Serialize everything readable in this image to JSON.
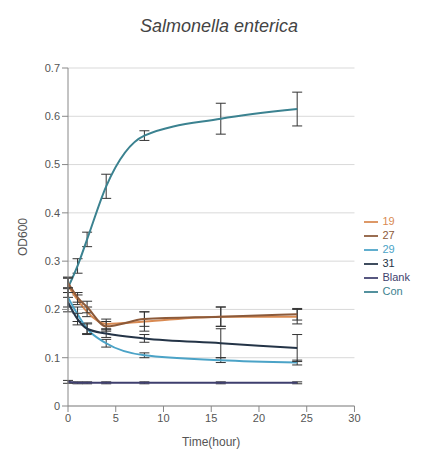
{
  "chart_data": {
    "type": "line",
    "title": "Salmonella enterica",
    "x_label": "Time(hour)",
    "y_label": "OD600",
    "x": [
      0,
      1,
      2,
      4,
      8,
      16,
      24
    ],
    "xlim": [
      0,
      30
    ],
    "xticks": [
      0,
      5,
      10,
      15,
      20,
      25,
      30
    ],
    "ylim": [
      0,
      0.7
    ],
    "yticks": [
      0,
      0.1,
      0.2,
      0.3,
      0.4,
      0.5,
      0.6,
      0.7
    ],
    "grid": true,
    "legend": "right",
    "line_style": "smooth",
    "series": [
      {
        "name": "Blank",
        "color": "#3f3f6e",
        "values": [
          0.05,
          0.048,
          0.048,
          0.048,
          0.048,
          0.048,
          0.048
        ],
        "errors": [
          0.003,
          0.002,
          0.002,
          0.002,
          0.002,
          0.002,
          0.002
        ]
      },
      {
        "name": "Con",
        "color": "#3b8290",
        "values": [
          0.245,
          0.29,
          0.345,
          0.455,
          0.56,
          0.595,
          0.615
        ],
        "errors": [
          0.02,
          0.015,
          0.015,
          0.025,
          0.01,
          0.032,
          0.035
        ]
      },
      {
        "name": "19",
        "color": "#d98a52",
        "values": [
          0.25,
          0.22,
          0.195,
          0.17,
          0.175,
          0.185,
          0.185
        ],
        "errors": [
          0.015,
          0.01,
          0.01,
          0.01,
          0.02,
          0.02,
          0.015
        ]
      },
      {
        "name": "27",
        "color": "#8c5a3a",
        "values": [
          0.255,
          0.225,
          0.205,
          0.165,
          0.18,
          0.185,
          0.19
        ],
        "errors": [
          0.012,
          0.01,
          0.012,
          0.01,
          0.015,
          0.02,
          0.012
        ]
      },
      {
        "name": "29",
        "color": "#4ba3c7",
        "values": [
          0.225,
          0.19,
          0.16,
          0.13,
          0.105,
          0.095,
          0.09
        ],
        "errors": [
          0.02,
          0.015,
          0.012,
          0.008,
          0.005,
          0.005,
          0.005
        ]
      },
      {
        "name": "31",
        "color": "#243447",
        "values": [
          0.215,
          0.18,
          0.16,
          0.15,
          0.14,
          0.13,
          0.12
        ],
        "errors": [
          0.02,
          0.012,
          0.01,
          0.008,
          0.008,
          0.03,
          0.028
        ]
      }
    ]
  }
}
